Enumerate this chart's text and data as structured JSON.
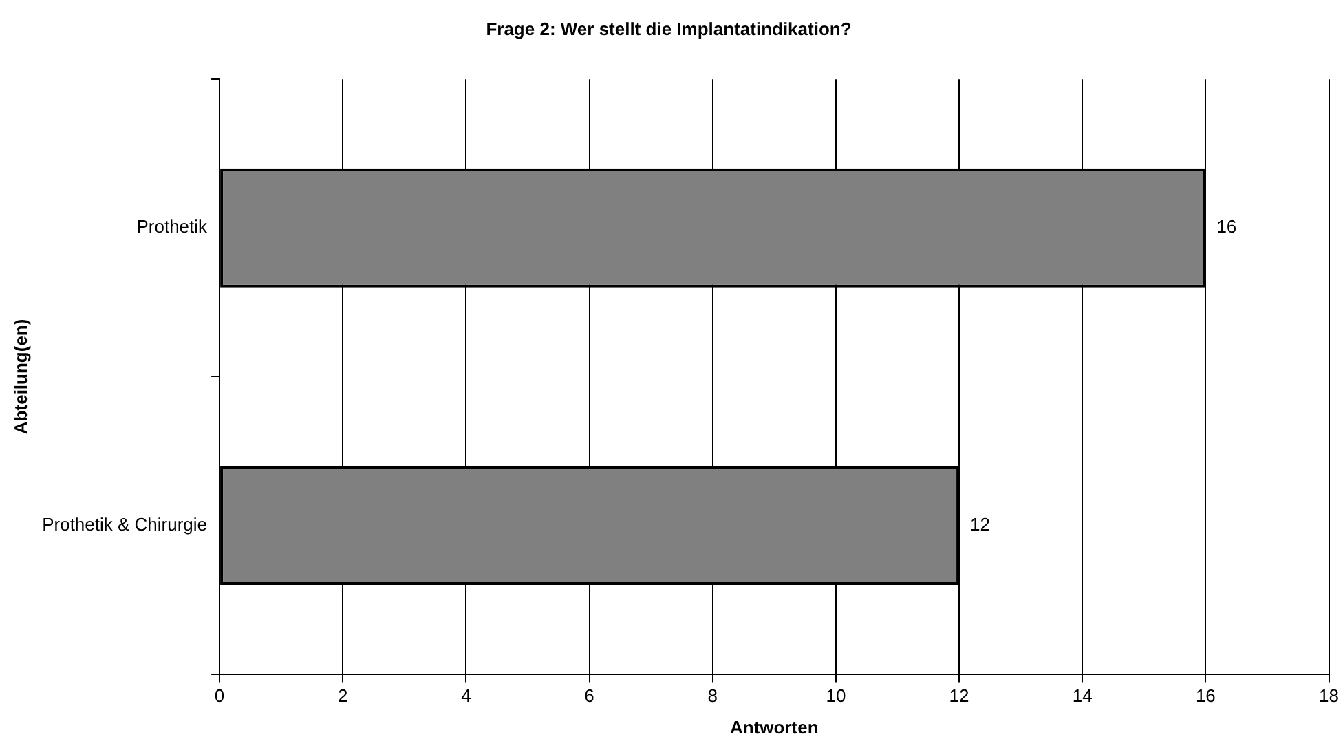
{
  "chart_data": {
    "type": "bar",
    "orientation": "horizontal",
    "title": "Frage 2: Wer stellt die Implantatindikation?",
    "xlabel": "Antworten",
    "ylabel": "Abteilung(en)",
    "categories": [
      "Prothetik",
      "Prothetik & Chirurgie"
    ],
    "values": [
      16,
      12
    ],
    "color": "#808080",
    "xlim": [
      0,
      18
    ],
    "xticks": [
      0,
      2,
      4,
      6,
      8,
      10,
      12,
      14,
      16,
      18
    ],
    "grid": "x",
    "data_labels": true,
    "legend": false
  }
}
